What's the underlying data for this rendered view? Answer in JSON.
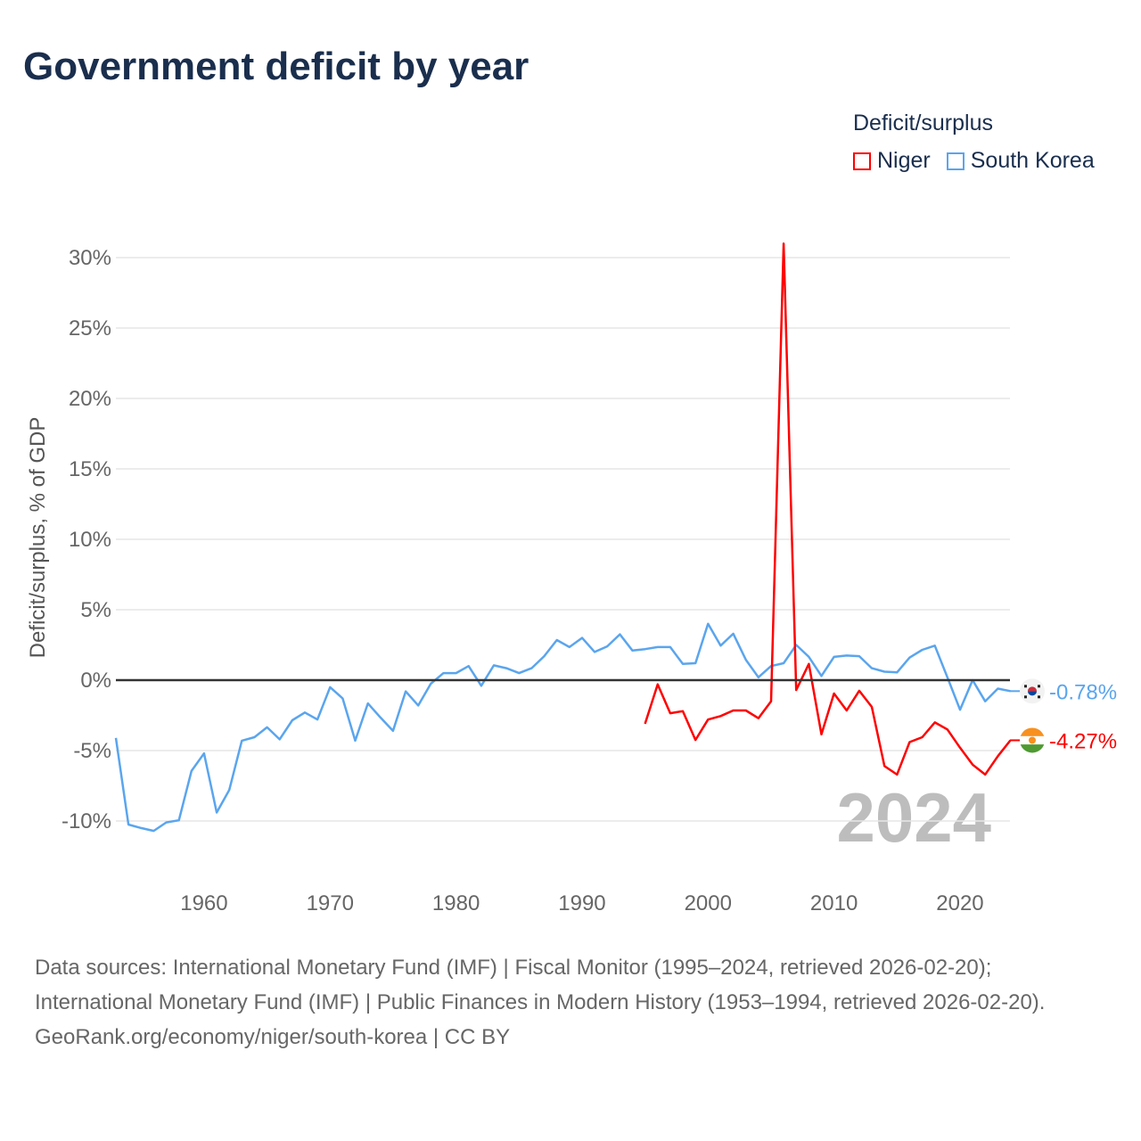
{
  "title": "Government deficit by year",
  "legend": {
    "title": "Deficit/surplus",
    "items": [
      {
        "label": "Niger",
        "color": "#ff0000"
      },
      {
        "label": "South Korea",
        "color": "#5aa5ee"
      }
    ]
  },
  "footer": {
    "sources": "Data sources: International Monetary Fund (IMF) | Fiscal Monitor (1995–2024, retrieved 2026-02-20); International Monetary Fund (IMF) | Public Finances in Modern History (1953–1994, retrieved 2026-02-20).",
    "credit": "GeoRank.org/economy/niger/south-korea | CC BY"
  },
  "chart_data": {
    "type": "line",
    "title": "Government deficit by year",
    "ylabel": "Deficit/surplus, % of GDP",
    "xlabel": "",
    "xlim": [
      1953,
      2024
    ],
    "ylim": [
      -13,
      31
    ],
    "x_ticks": [
      1960,
      1970,
      1980,
      1990,
      2000,
      2010,
      2020
    ],
    "y_ticks": [
      -10,
      -5,
      0,
      5,
      10,
      15,
      20,
      25,
      30
    ],
    "y_tick_labels": [
      "-10%",
      "-5%",
      "0%",
      "5%",
      "10%",
      "15%",
      "20%",
      "25%",
      "30%"
    ],
    "year_watermark": "2024",
    "series": [
      {
        "name": "South Korea",
        "color": "#5aa5ee",
        "start_year": 1953,
        "end_label": "-0.78%",
        "values": [
          -4.1,
          -10.25,
          -10.5,
          -10.7,
          -10.1,
          -9.95,
          -6.45,
          -5.2,
          -9.4,
          -7.8,
          -4.3,
          -4.05,
          -3.35,
          -4.2,
          -2.85,
          -2.3,
          -2.8,
          -0.5,
          -1.3,
          -4.3,
          -1.65,
          -2.65,
          -3.6,
          -0.8,
          -1.8,
          -0.25,
          0.5,
          0.5,
          1.0,
          -0.4,
          1.05,
          0.85,
          0.5,
          0.85,
          1.7,
          2.85,
          2.35,
          3.0,
          2.0,
          2.4,
          3.25,
          2.1,
          2.2,
          2.35,
          2.35,
          1.15,
          1.2,
          4.0,
          2.45,
          3.3,
          1.45,
          0.2,
          1.0,
          1.2,
          2.5,
          1.65,
          0.3,
          1.65,
          1.75,
          1.7,
          0.85,
          0.6,
          0.55,
          1.6,
          2.15,
          2.45,
          0.2,
          -2.1,
          0.0,
          -1.5,
          -0.6,
          -0.78
        ]
      },
      {
        "name": "Niger",
        "color": "#ff0000",
        "start_year": 1995,
        "end_label": "-4.27%",
        "values": [
          -3.1,
          -0.3,
          -2.35,
          -2.2,
          -4.25,
          -2.8,
          -2.55,
          -2.15,
          -2.15,
          -2.7,
          -1.5,
          31.0,
          -0.7,
          1.15,
          -3.85,
          -0.95,
          -2.15,
          -0.75,
          -1.9,
          -6.1,
          -6.7,
          -4.4,
          -4.05,
          -3.0,
          -3.5,
          -4.8,
          -6.0,
          -6.7,
          -5.4,
          -4.27
        ]
      }
    ]
  }
}
